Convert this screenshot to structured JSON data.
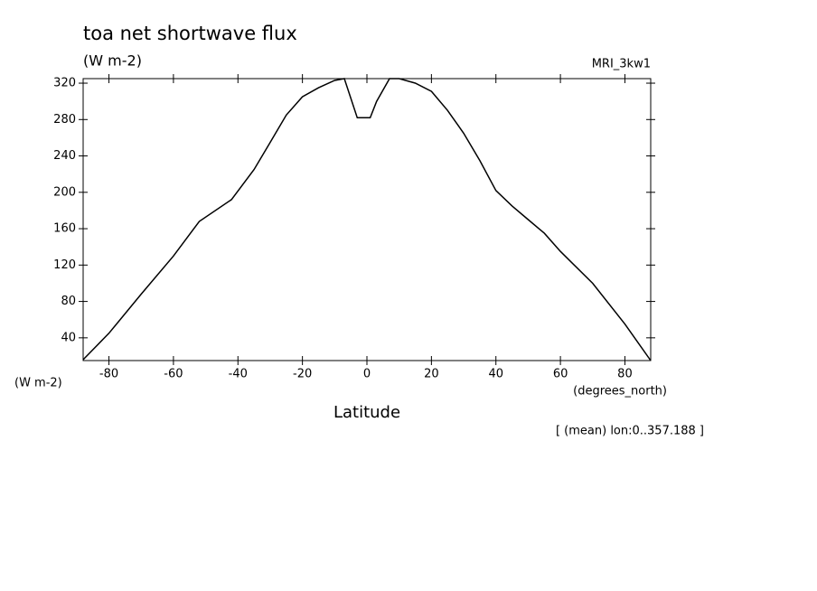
{
  "chart_data": {
    "type": "line",
    "title": "toa net shortwave flux",
    "subtitle": "(W m-2)",
    "dataset": "MRI_3kw1",
    "y_units": "(W m-2)",
    "x_units": "(degrees_north)",
    "x_label": "Latitude",
    "annotation": "[ (mean) lon:0..357.188 ]",
    "color": "#000000",
    "x": [
      -88,
      -80,
      -70,
      -60,
      -52,
      -42,
      -35,
      -30,
      -25,
      -20,
      -15,
      -10,
      -7,
      -3,
      0,
      1,
      3,
      7,
      10,
      15,
      20,
      25,
      30,
      35,
      40,
      45,
      50,
      55,
      60,
      70,
      80,
      88
    ],
    "values": [
      16,
      45,
      88,
      130,
      168,
      192,
      225,
      255,
      285,
      305,
      315,
      323,
      325,
      282,
      282,
      282,
      300,
      325,
      325,
      320,
      311,
      290,
      265,
      235,
      202,
      185,
      170,
      155,
      135,
      100,
      55,
      15
    ],
    "xlim": [
      -88,
      88
    ],
    "ylim": [
      15,
      325
    ],
    "xticks": [
      -80,
      -60,
      -40,
      -20,
      0,
      20,
      40,
      60,
      80
    ],
    "yticks": [
      40,
      80,
      120,
      160,
      200,
      240,
      280,
      320
    ]
  }
}
